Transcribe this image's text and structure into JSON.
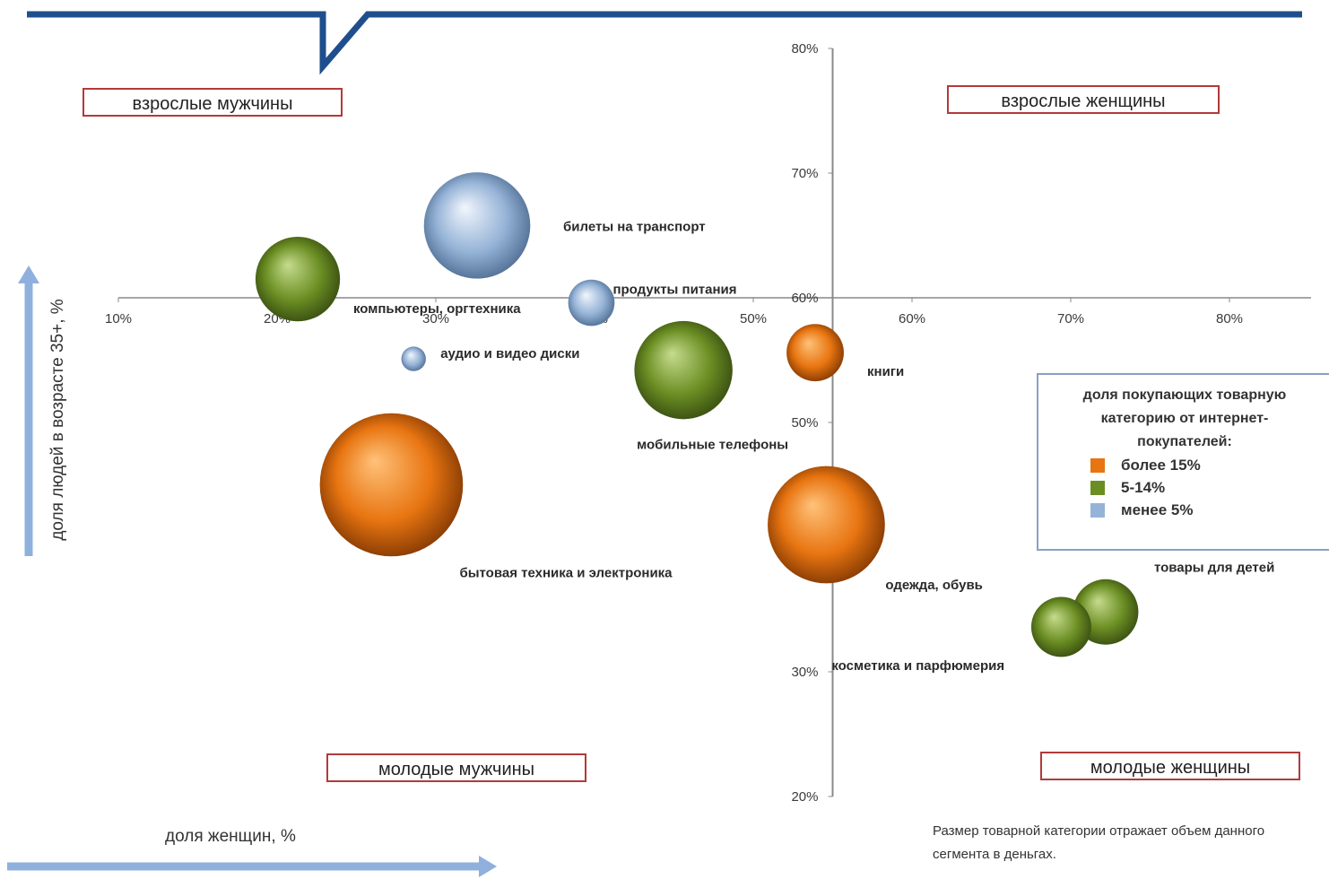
{
  "chart_data": {
    "type": "bubble",
    "x_axis": {
      "label": "доля женщин, %",
      "ticks": [
        "10%",
        "20%",
        "30%",
        "40%",
        "50%",
        "60%",
        "70%",
        "80%"
      ],
      "range": [
        10,
        85
      ]
    },
    "y_axis": {
      "label": "доля людей в возрасте 35+, %",
      "ticks": [
        "20%",
        "30%",
        "40%",
        "50%",
        "60%",
        "70%",
        "80%"
      ],
      "range": [
        20,
        80
      ]
    },
    "crossing": {
      "x": 55,
      "y": 60
    },
    "quadrants": {
      "top_left": "взрослые мужчины",
      "top_right": "взрослые женщины",
      "bottom_left": "молодые мужчины",
      "bottom_right": "молодые женщины"
    },
    "legend": {
      "title": "доля покупающих товарную категорию от интернет-покупателей:",
      "items": [
        {
          "label": "более 15%",
          "color": "#e87511"
        },
        {
          "label": "5-14%",
          "color": "#6b8e23"
        },
        {
          "label": "менее 5%",
          "color": "#95b3d7"
        }
      ]
    },
    "series": [
      {
        "label": "билеты на транспорт",
        "x": 32.6,
        "y": 65.8,
        "size": 78,
        "group": "менее 5%"
      },
      {
        "label": "компьютеры, оргтехника",
        "x": 21.3,
        "y": 61.5,
        "size": 62,
        "group": "5-14%"
      },
      {
        "label": "продукты питания",
        "x": 39.8,
        "y": 59.6,
        "size": 34,
        "group": "менее 5%"
      },
      {
        "label": "аудио и видео диски",
        "x": 28.6,
        "y": 55.1,
        "size": 18,
        "group": "менее 5%"
      },
      {
        "label": "мобильные телефоны",
        "x": 45.6,
        "y": 54.2,
        "size": 72,
        "group": "5-14%"
      },
      {
        "label": "книги",
        "x": 53.9,
        "y": 55.6,
        "size": 42,
        "group": "более 15%"
      },
      {
        "label": "бытовая техника и электроника",
        "x": 27.2,
        "y": 45.0,
        "size": 105,
        "group": "более 15%"
      },
      {
        "label": "одежда, обувь",
        "x": 54.6,
        "y": 41.8,
        "size": 86,
        "group": "более 15%"
      },
      {
        "label": "товары для детей",
        "x": 72.2,
        "y": 34.8,
        "size": 48,
        "group": "5-14%"
      },
      {
        "label": "косметика и парфюмерия",
        "x": 69.4,
        "y": 33.6,
        "size": 44,
        "group": "5-14%"
      }
    ],
    "note": "Размер товарной категории отражает объем данного сегмента в деньгах."
  }
}
